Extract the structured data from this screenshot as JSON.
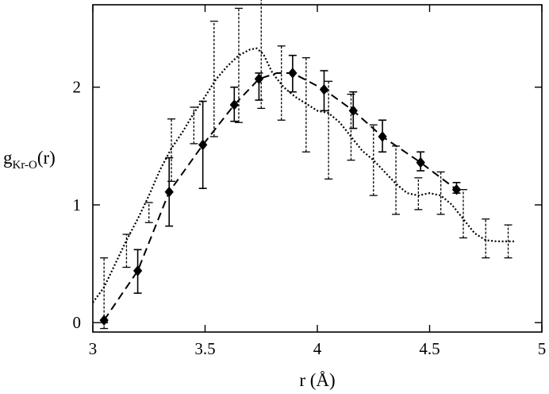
{
  "chart_data": {
    "type": "scatter",
    "title": "",
    "xlabel": "r (Å)",
    "ylabel": {
      "main": "g",
      "subscript": "Kr-O",
      "suffix": "(r)"
    },
    "xlim": [
      3.0,
      5.0
    ],
    "ylim": [
      -0.08,
      2.7
    ],
    "x_ticks": [
      3,
      3.5,
      4,
      4.5,
      5
    ],
    "x_tick_labels": [
      "3",
      "3.5",
      "4",
      "4.5",
      "5"
    ],
    "y_ticks": [
      0,
      1,
      2
    ],
    "y_tick_labels": [
      "0",
      "1",
      "2"
    ],
    "grid": false,
    "legend": "none",
    "series": [
      {
        "style": "diamond markers with solid error bars, dashed connecting line",
        "x": [
          3.05,
          3.2,
          3.34,
          3.49,
          3.63,
          3.74,
          3.89,
          4.03,
          4.16,
          4.29,
          4.46,
          4.62
        ],
        "y": [
          0.02,
          0.44,
          1.11,
          1.51,
          1.85,
          2.07,
          2.12,
          1.98,
          1.8,
          1.58,
          1.36,
          1.13
        ],
        "err_low": [
          0.0,
          0.25,
          0.82,
          1.14,
          1.71,
          1.89,
          1.96,
          1.8,
          1.65,
          1.45,
          1.29,
          1.1
        ],
        "err_high": [
          0.02,
          0.62,
          1.4,
          1.88,
          2.0,
          2.12,
          2.27,
          2.14,
          1.96,
          1.72,
          1.45,
          1.19
        ],
        "line_x": [
          3.05,
          3.2,
          3.34,
          3.49,
          3.63,
          3.74,
          3.82,
          3.89,
          4.03,
          4.16,
          4.29,
          4.46,
          4.62
        ],
        "line_y": [
          0.02,
          0.44,
          1.11,
          1.51,
          1.85,
          2.07,
          2.12,
          2.12,
          1.98,
          1.8,
          1.58,
          1.36,
          1.13
        ]
      },
      {
        "style": "dotted curve with dotted error bars",
        "curve_x": [
          3.0,
          3.05,
          3.1,
          3.15,
          3.2,
          3.25,
          3.3,
          3.35,
          3.4,
          3.45,
          3.5,
          3.55,
          3.6,
          3.65,
          3.7,
          3.73,
          3.76,
          3.8,
          3.85,
          3.9,
          3.95,
          4.0,
          4.05,
          4.1,
          4.15,
          4.2,
          4.25,
          4.3,
          4.35,
          4.4,
          4.45,
          4.5,
          4.55,
          4.6,
          4.65,
          4.7,
          4.75,
          4.8,
          4.85,
          4.88
        ],
        "curve_y": [
          0.17,
          0.3,
          0.5,
          0.7,
          0.88,
          1.08,
          1.3,
          1.48,
          1.62,
          1.78,
          1.92,
          2.07,
          2.18,
          2.27,
          2.32,
          2.33,
          2.28,
          2.12,
          2.0,
          1.92,
          1.86,
          1.8,
          1.78,
          1.7,
          1.58,
          1.46,
          1.38,
          1.28,
          1.18,
          1.1,
          1.08,
          1.1,
          1.08,
          1.0,
          0.88,
          0.76,
          0.7,
          0.69,
          0.69,
          0.69
        ],
        "err_x": [
          3.05,
          3.15,
          3.25,
          3.35,
          3.45,
          3.54,
          3.65,
          3.75,
          3.84,
          3.95,
          4.05,
          4.15,
          4.25,
          4.35,
          4.45,
          4.55,
          4.65,
          4.75,
          4.85
        ],
        "err_low": [
          -0.05,
          0.47,
          0.85,
          1.2,
          1.52,
          1.58,
          1.7,
          1.82,
          1.72,
          1.45,
          1.22,
          1.38,
          1.08,
          0.92,
          0.96,
          0.92,
          0.72,
          0.55,
          0.55
        ],
        "err_high": [
          0.55,
          0.75,
          1.02,
          1.73,
          1.83,
          2.56,
          2.67,
          2.75,
          2.35,
          2.25,
          2.05,
          1.94,
          1.68,
          1.5,
          1.23,
          1.28,
          1.13,
          0.88,
          0.83
        ]
      }
    ]
  }
}
